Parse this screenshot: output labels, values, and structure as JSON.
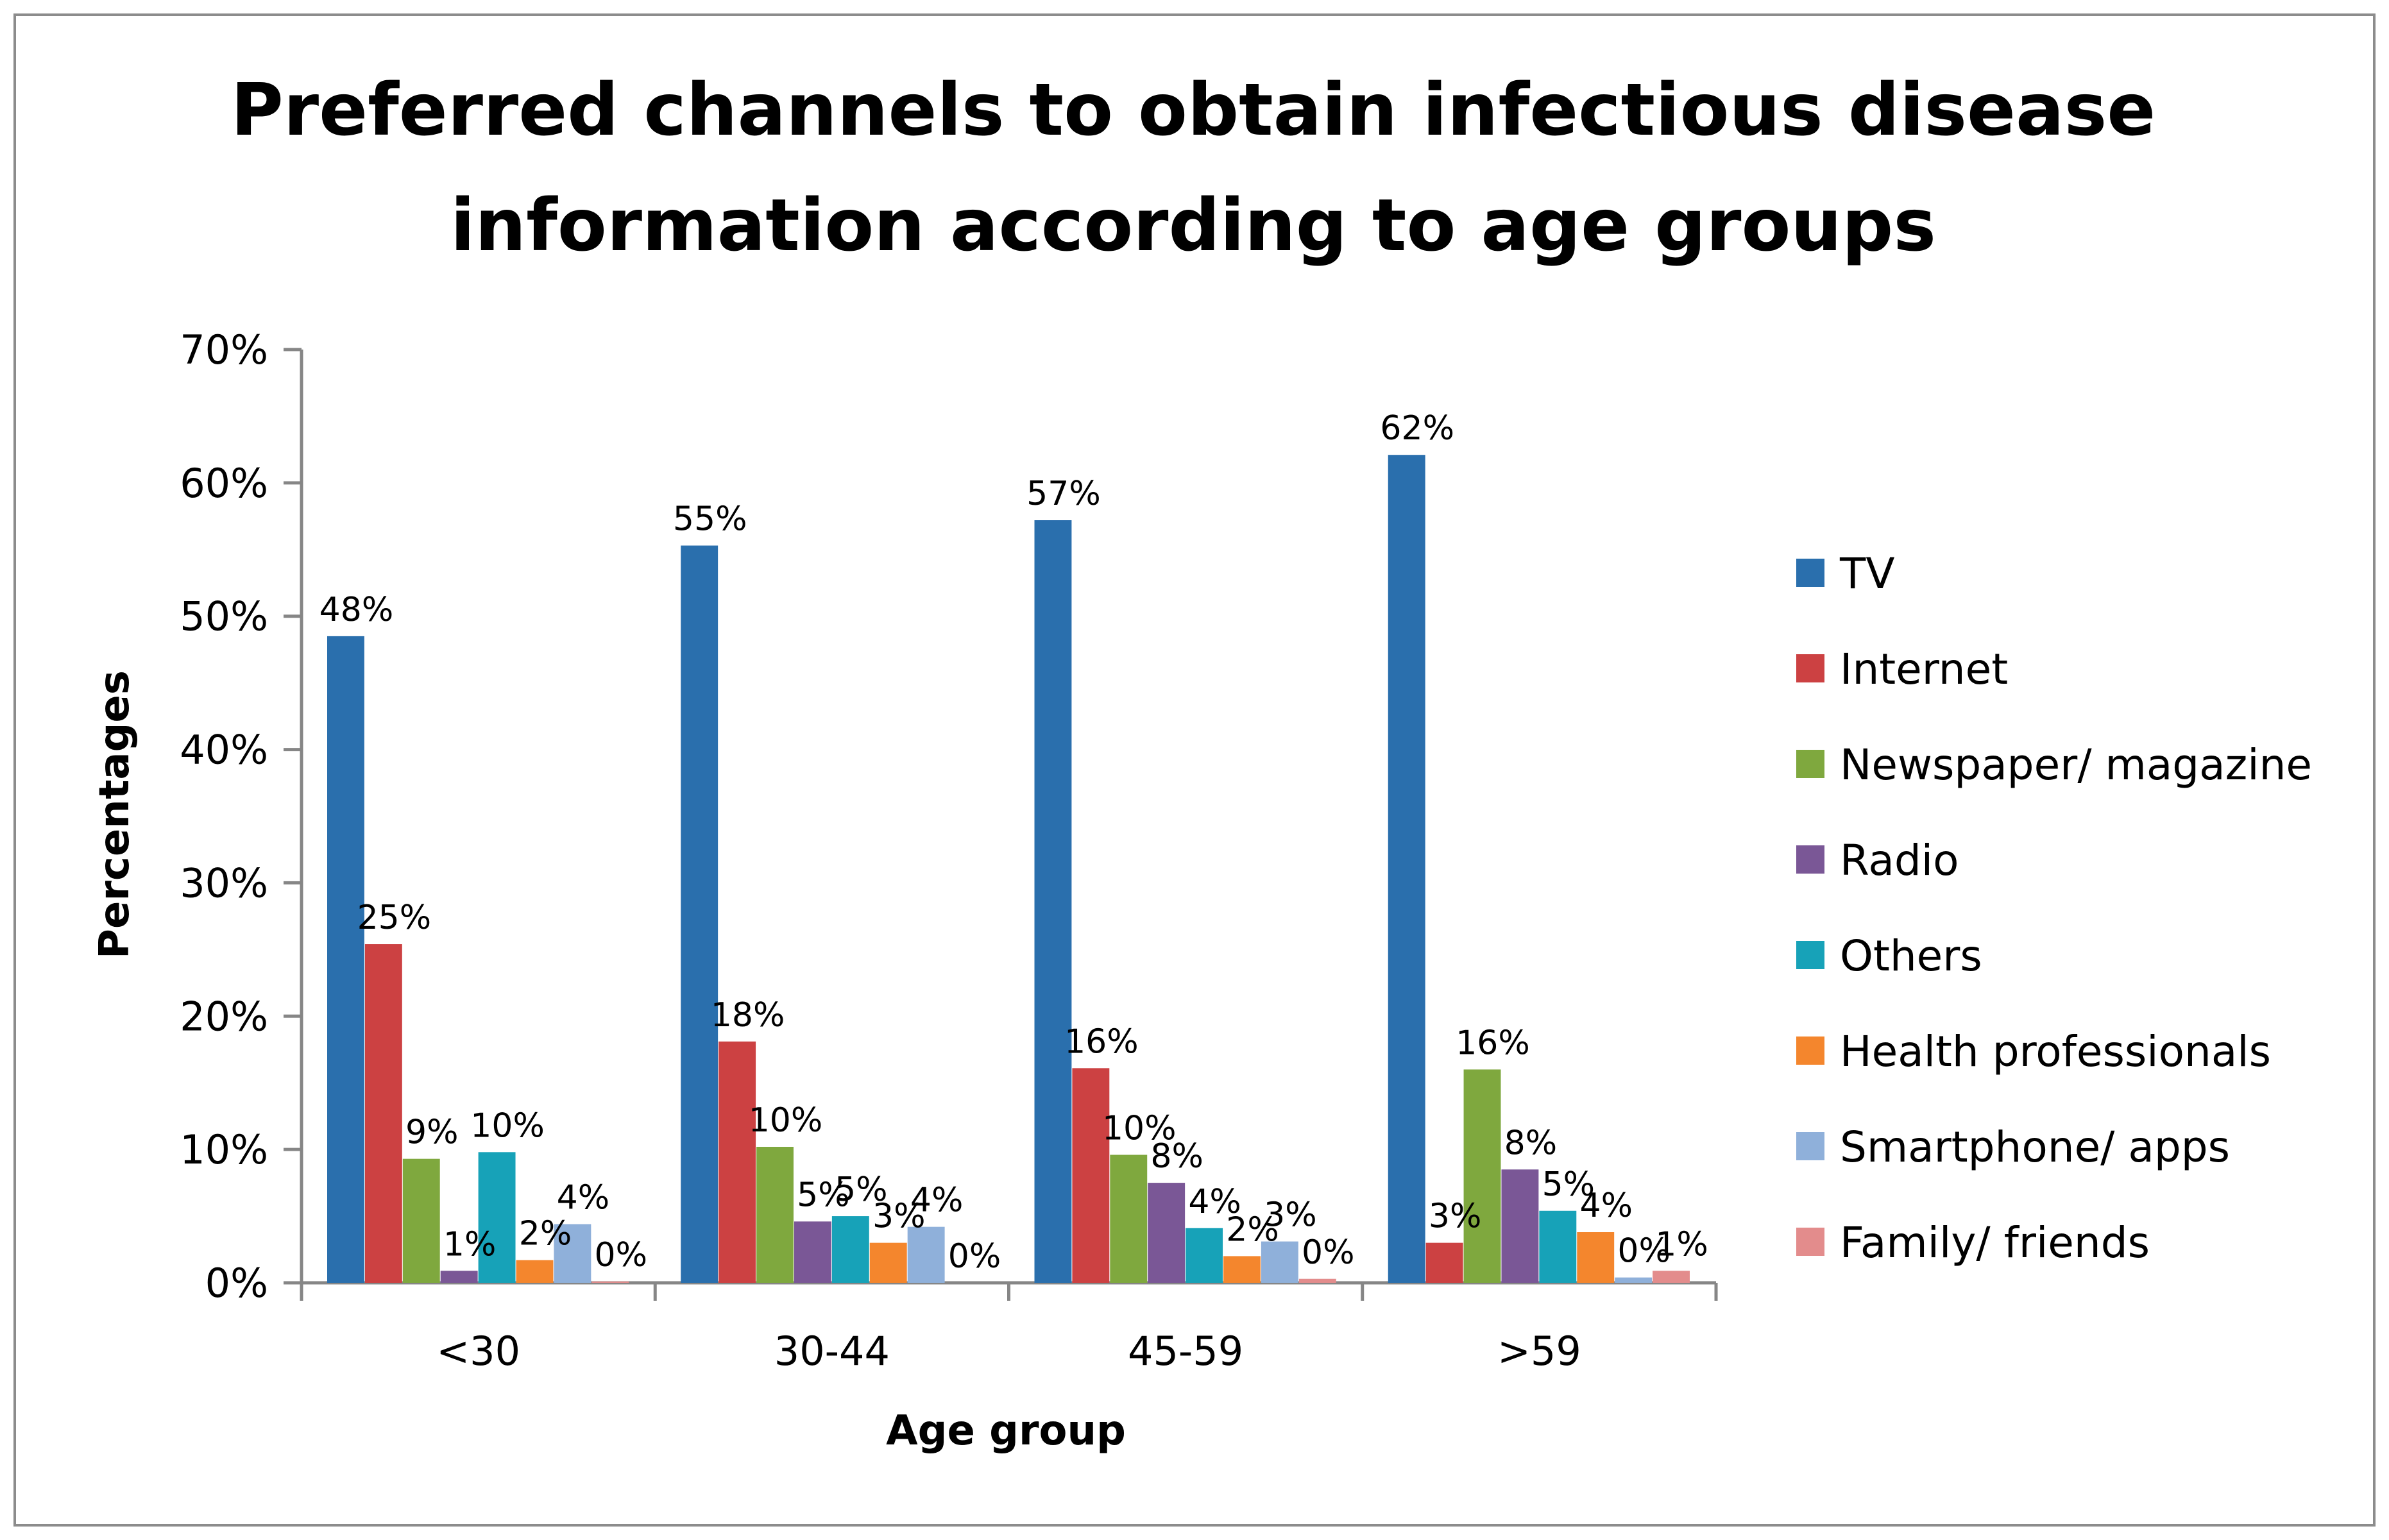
{
  "chart_data": {
    "type": "bar",
    "title_lines": [
      "Preferred channels to obtain infectious disease",
      "information according to age groups"
    ],
    "xlabel": "Age group",
    "ylabel": "Percentages",
    "ylim": [
      0,
      70
    ],
    "y_ticks": [
      "0%",
      "10%",
      "20%",
      "30%",
      "40%",
      "50%",
      "60%",
      "70%"
    ],
    "categories": [
      "<30",
      "30-44",
      "45-59",
      ">59"
    ],
    "legend_position": "right",
    "series": [
      {
        "name": "TV",
        "color": "#2a6fad",
        "values": [
          48.5,
          55.3,
          57.2,
          62.1
        ],
        "labels": [
          "48%",
          "55%",
          "57%",
          "62%"
        ]
      },
      {
        "name": "Internet",
        "color": "#cc4142",
        "values": [
          25.4,
          18.1,
          16.1,
          3.0
        ],
        "labels": [
          "25%",
          "18%",
          "16%",
          "3%"
        ]
      },
      {
        "name": "Newspaper/ magazine",
        "color": "#7fa83e",
        "values": [
          9.3,
          10.2,
          9.6,
          16.0
        ],
        "labels": [
          "9%",
          "10%",
          "10%",
          "16%"
        ]
      },
      {
        "name": "Radio",
        "color": "#7a5796",
        "values": [
          0.9,
          4.6,
          7.5,
          8.5
        ],
        "labels": [
          "1%",
          "5%",
          "8%",
          "8%"
        ]
      },
      {
        "name": "Others",
        "color": "#17a2b8",
        "values": [
          9.8,
          5.0,
          4.1,
          5.4
        ],
        "labels": [
          "10%",
          "5%",
          "4%",
          "5%"
        ]
      },
      {
        "name": "Health professionals",
        "color": "#f4862d",
        "values": [
          1.7,
          3.0,
          2.0,
          3.8
        ],
        "labels": [
          "2%",
          "3%",
          "2%",
          "4%"
        ]
      },
      {
        "name": "Smartphone/ apps",
        "color": "#8fb0da",
        "values": [
          4.4,
          4.2,
          3.1,
          0.4
        ],
        "labels": [
          "4%",
          "4%",
          "3%",
          "0%"
        ]
      },
      {
        "name": "Family/ friends",
        "color": "#e38c8c",
        "values": [
          0.1,
          0.0,
          0.3,
          0.9
        ],
        "labels": [
          "0%",
          "0%",
          "0%",
          "1%"
        ]
      }
    ]
  }
}
